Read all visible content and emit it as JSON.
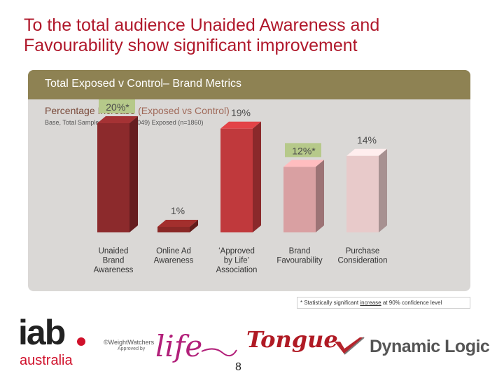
{
  "slide": {
    "title_line1": "To the total audience Unaided Awareness and",
    "title_line2": "Favourability show significant improvement",
    "page_number": "8"
  },
  "panel": {
    "header": "Total Exposed v Control– Brand Metrics",
    "subtitle_main": "Percentage Increase",
    "subtitle_muted": "(Exposed vs Control)",
    "base_note": "Base, Total Sample: Control (n=1049) Exposed (n=1860)"
  },
  "footnote": {
    "prefix": "* Statistically significant ",
    "underlined": "increase",
    "suffix": " at 90% confidence level"
  },
  "logos": {
    "iab_word": "iab",
    "iab_sub": "australia",
    "ww_line1": "©WeightWatchers",
    "ww_line2": "Approved by",
    "ww_life": "life",
    "tongue": "Tongue",
    "dynamic_logic": "Dynamic Logic"
  },
  "colors": {
    "title": "#b0182b",
    "panel_bg": "#dad8d6",
    "header_bg": "#8e8253",
    "highlight_box": "#b6c98a"
  },
  "chart_data": {
    "type": "bar",
    "title": "Percentage Increase (Exposed vs Control)",
    "categories": [
      "Unaided Brand Awareness",
      "Online Ad Awareness",
      "‘Approved by Life’ Association",
      "Brand Favourability",
      "Purchase Consideration"
    ],
    "category_lines": [
      [
        "Unaided",
        "Brand",
        "Awareness"
      ],
      [
        "Online Ad",
        "Awareness"
      ],
      [
        "‘Approved",
        "by Life’",
        "Association"
      ],
      [
        "Brand",
        "Favourability"
      ],
      [
        "Purchase",
        "Consideration"
      ]
    ],
    "values": [
      20,
      1,
      19,
      12,
      14
    ],
    "labels": [
      "20%*",
      "1%",
      "19%",
      "12%*",
      "14%"
    ],
    "significant": [
      true,
      false,
      false,
      true,
      false
    ],
    "bar_colors": [
      "#8c2a2c",
      "#8a2826",
      "#c0393c",
      "#d9a0a2",
      "#e8caca"
    ],
    "ylim": [
      0,
      20
    ],
    "grid": false,
    "legend": "none"
  }
}
